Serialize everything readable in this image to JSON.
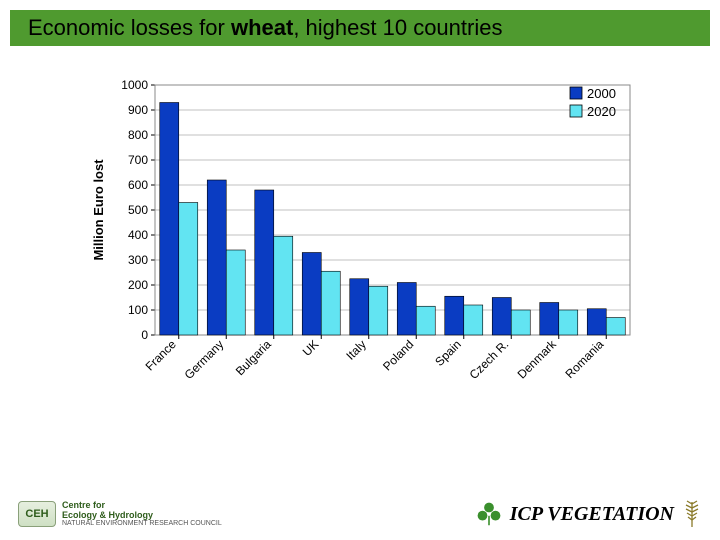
{
  "title": {
    "prefix": "Economic losses for ",
    "bold": "wheat",
    "suffix": ", highest 10 countries",
    "band_color": "#4f9a2f",
    "text_color": "#000000",
    "fontsize": 22
  },
  "chart": {
    "type": "bar",
    "y_axis_label": "Million Euro lost",
    "label_fontsize": 13,
    "tick_fontsize": 12,
    "background_color": "#ffffff",
    "plot_border_color": "#888888",
    "grid_color": "#c0c0c0",
    "ylim": [
      0,
      1000
    ],
    "ytick_step": 100,
    "yticks": [
      0,
      100,
      200,
      300,
      400,
      500,
      600,
      700,
      800,
      900,
      1000
    ],
    "categories": [
      "France",
      "Germany",
      "Bulgaria",
      "UK",
      "Italy",
      "Poland",
      "Spain",
      "Czech R.",
      "Denmark",
      "Romania"
    ],
    "series": [
      {
        "name": "2000",
        "color": "#0a3cc2",
        "legend_swatch_border": "#000000",
        "values": [
          930,
          620,
          580,
          330,
          225,
          210,
          155,
          150,
          130,
          105
        ]
      },
      {
        "name": "2020",
        "color": "#62e4f2",
        "legend_swatch_border": "#000000",
        "values": [
          530,
          340,
          395,
          255,
          195,
          115,
          120,
          100,
          100,
          70
        ]
      }
    ],
    "bar": {
      "group_gap": 0.2,
      "inner_gap": 0.0,
      "series_width": 0.4
    },
    "legend": {
      "position": "top-right",
      "box_border": "none",
      "swatch_size": 12
    }
  },
  "footer": {
    "left_logo": {
      "mark_text": "CEH",
      "line1": "Centre for",
      "line2": "Ecology & Hydrology",
      "subline": "NATURAL ENVIRONMENT RESEARCH COUNCIL",
      "text_color": "#2f5d1c"
    },
    "right": {
      "label": "ICP VEGETATION",
      "clover_color": "#3a8f2d",
      "wheat_color": "#8a7a2a"
    }
  }
}
